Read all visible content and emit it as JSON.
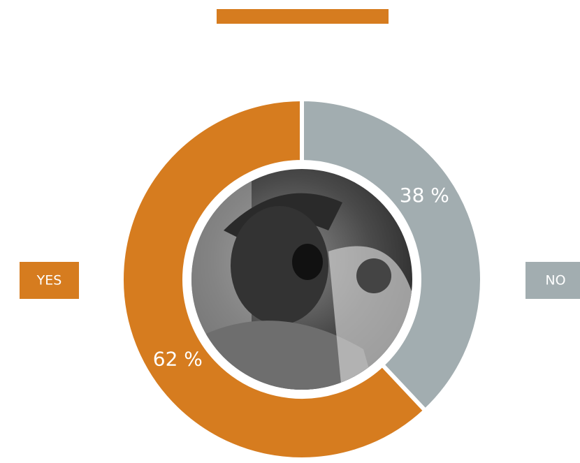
{
  "chart_data": {
    "type": "donut",
    "categories": [
      "YES",
      "NO"
    ],
    "values": [
      62,
      38
    ],
    "value_labels": [
      "62 %",
      "38 %"
    ],
    "colors": [
      "#d67c1f",
      "#a2adb0"
    ]
  }
}
